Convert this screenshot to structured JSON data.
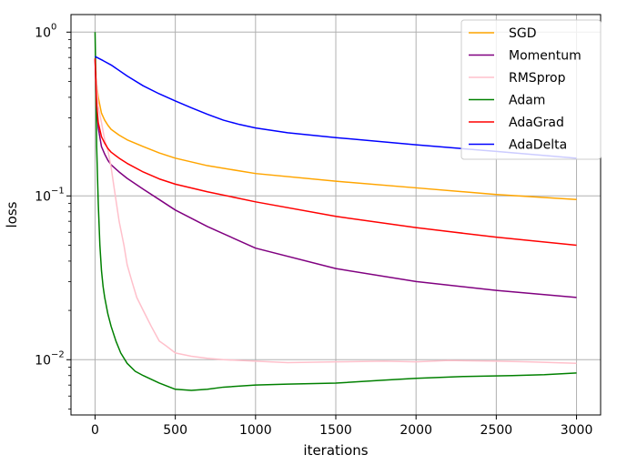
{
  "chart_data": {
    "type": "line",
    "title": "",
    "xlabel": "iterations",
    "ylabel": "loss",
    "xscale": "linear",
    "yscale": "log",
    "xlim": [
      -150,
      3150
    ],
    "ylim": [
      0.0046,
      1.28
    ],
    "grid": true,
    "legend_position": "top-right",
    "x_ticks": [
      0,
      500,
      1000,
      1500,
      2000,
      2500,
      3000
    ],
    "x_tick_labels": [
      "0",
      "500",
      "1000",
      "1500",
      "2000",
      "2500",
      "3000"
    ],
    "y_ticks": [
      0.01,
      0.1,
      1
    ],
    "y_tick_labels": [
      "10",
      "10",
      "10"
    ],
    "y_tick_exponents": [
      "−2",
      "−1",
      "0"
    ],
    "series": [
      {
        "name": "SGD",
        "color": "#ffa500",
        "x": [
          0,
          10,
          20,
          40,
          60,
          80,
          100,
          150,
          200,
          300,
          400,
          500,
          700,
          1000,
          1500,
          2000,
          2500,
          3000
        ],
        "values": [
          0.69,
          0.48,
          0.4,
          0.32,
          0.29,
          0.27,
          0.255,
          0.235,
          0.22,
          0.2,
          0.183,
          0.17,
          0.153,
          0.137,
          0.123,
          0.112,
          0.102,
          0.095
        ]
      },
      {
        "name": "Momentum",
        "color": "#800080",
        "x": [
          0,
          10,
          20,
          40,
          60,
          80,
          100,
          150,
          200,
          300,
          400,
          500,
          700,
          1000,
          1500,
          2000,
          2500,
          3000
        ],
        "values": [
          0.69,
          0.35,
          0.26,
          0.2,
          0.18,
          0.165,
          0.155,
          0.14,
          0.128,
          0.11,
          0.095,
          0.082,
          0.065,
          0.048,
          0.036,
          0.03,
          0.0265,
          0.024
        ]
      },
      {
        "name": "RMSprop",
        "color": "#ffc0cb",
        "x": [
          0,
          20,
          40,
          60,
          80,
          100,
          120,
          150,
          180,
          200,
          230,
          260,
          300,
          350,
          400,
          450,
          500,
          600,
          700,
          800,
          1000,
          1200,
          1500,
          1800,
          2000,
          2200,
          2500,
          2700,
          3000
        ],
        "values": [
          0.69,
          0.35,
          0.28,
          0.22,
          0.19,
          0.15,
          0.11,
          0.07,
          0.05,
          0.038,
          0.03,
          0.024,
          0.02,
          0.016,
          0.013,
          0.012,
          0.011,
          0.0105,
          0.0102,
          0.01,
          0.0098,
          0.0096,
          0.0097,
          0.0098,
          0.0097,
          0.0099,
          0.0098,
          0.0097,
          0.0095
        ]
      },
      {
        "name": "Adam",
        "color": "#008000",
        "x": [
          0,
          5,
          10,
          20,
          30,
          40,
          50,
          60,
          80,
          100,
          130,
          160,
          200,
          250,
          300,
          400,
          500,
          600,
          700,
          800,
          1000,
          1200,
          1500,
          1800,
          2000,
          2300,
          2600,
          2800,
          3000
        ],
        "values": [
          1.0,
          0.5,
          0.2,
          0.09,
          0.05,
          0.035,
          0.028,
          0.024,
          0.019,
          0.016,
          0.013,
          0.011,
          0.0095,
          0.0085,
          0.008,
          0.0072,
          0.0066,
          0.0065,
          0.0066,
          0.0068,
          0.007,
          0.0071,
          0.0072,
          0.0075,
          0.0077,
          0.0079,
          0.008,
          0.0081,
          0.0083
        ]
      },
      {
        "name": "AdaGrad",
        "color": "#ff0000",
        "x": [
          0,
          10,
          20,
          40,
          60,
          80,
          100,
          150,
          200,
          300,
          400,
          500,
          700,
          1000,
          1500,
          2000,
          2500,
          3000
        ],
        "values": [
          0.69,
          0.36,
          0.28,
          0.23,
          0.21,
          0.195,
          0.185,
          0.17,
          0.158,
          0.14,
          0.127,
          0.118,
          0.106,
          0.092,
          0.075,
          0.064,
          0.056,
          0.05
        ]
      },
      {
        "name": "AdaDelta",
        "color": "#0000ff",
        "x": [
          0,
          50,
          100,
          200,
          300,
          400,
          500,
          600,
          700,
          800,
          900,
          1000,
          1200,
          1500,
          2000,
          2500,
          3000
        ],
        "values": [
          0.71,
          0.67,
          0.63,
          0.54,
          0.47,
          0.42,
          0.38,
          0.345,
          0.315,
          0.29,
          0.273,
          0.26,
          0.243,
          0.227,
          0.205,
          0.187,
          0.17
        ]
      }
    ]
  }
}
